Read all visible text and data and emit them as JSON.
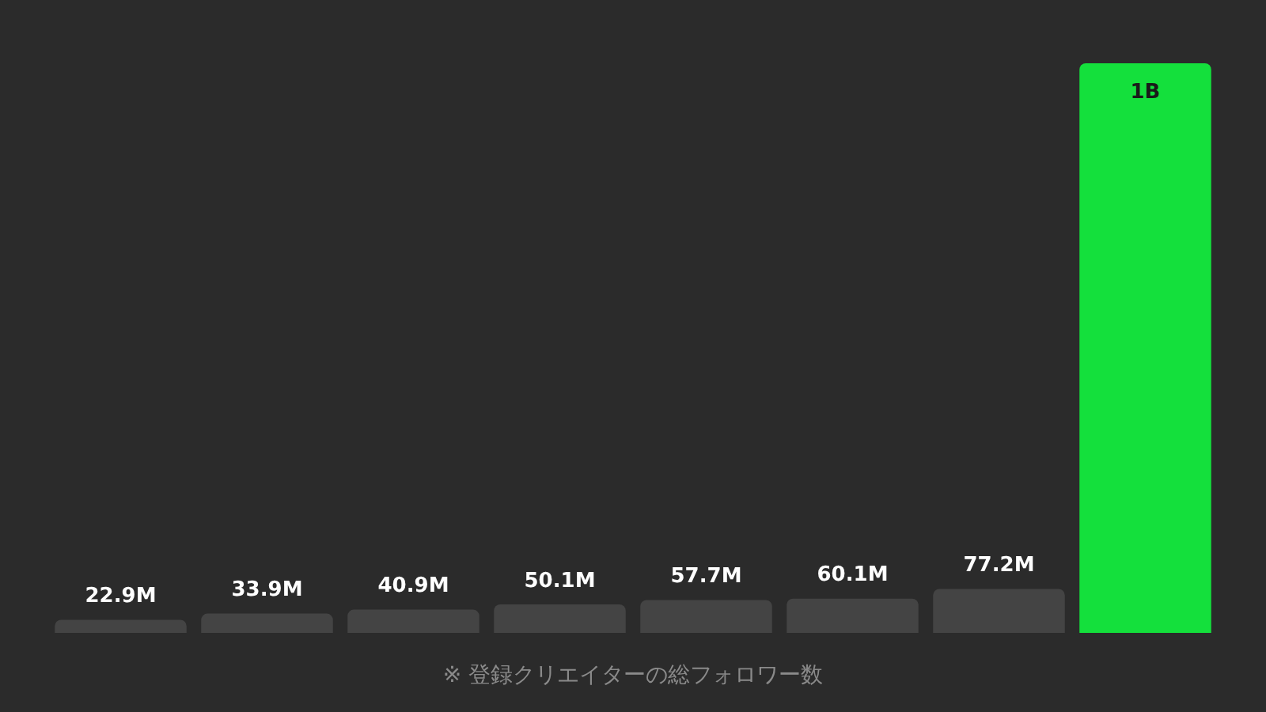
{
  "chart_data": {
    "type": "bar",
    "categories": [
      null,
      null,
      null,
      null,
      null,
      null,
      null,
      null
    ],
    "values": [
      22900000,
      33900000,
      40900000,
      50100000,
      57700000,
      60100000,
      77200000,
      1000000000
    ],
    "colors": [
      "#444444",
      "#444444",
      "#444444",
      "#444444",
      "#444444",
      "#444444",
      "#444444",
      "#14e03c"
    ],
    "value_labels": [
      "22.9M",
      "33.9M",
      "40.9M",
      "50.1M",
      "57.7M",
      "60.1M",
      "77.2M",
      "1B"
    ],
    "ylim": [
      0,
      1000000000
    ],
    "annotations": [
      "※ 登録クリエイターの総フォロワー数"
    ]
  }
}
